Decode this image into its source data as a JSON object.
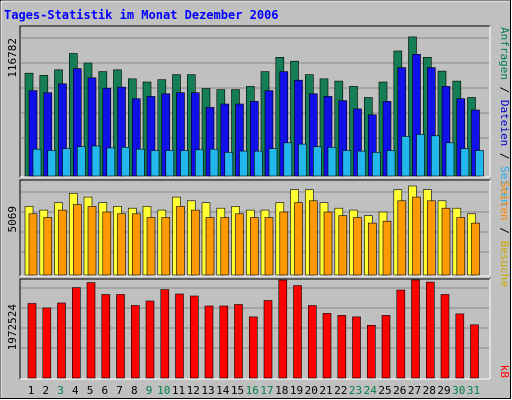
{
  "title": "Tages-Statistik im Monat Dezember 2006",
  "colors": {
    "title": "#0000ff",
    "frame_bg": "#c0c0c0",
    "anfragen": "#157e54",
    "dateien": "#1010e8",
    "seiten": "#22b8ee",
    "besuche": "#ffff33",
    "seiten2": "#ff9900",
    "kb": "#ff0000",
    "day_weekday": "#000000",
    "day_weekend": "#00804a",
    "label_green": "#00804a",
    "label_blue": "#0000cc",
    "label_cyan": "#22aaee",
    "label_orange": "#ff8800",
    "label_yellow": "#ccaa00",
    "label_red": "#ff0000"
  },
  "chart_data": [
    {
      "type": "bar",
      "panel": "top",
      "ymax_label": "116782",
      "ylim": [
        0,
        116782
      ],
      "legend": [
        {
          "text": "Anfragen",
          "color_key": "label_green"
        },
        {
          "text": "Dateien",
          "color_key": "label_blue"
        },
        {
          "text": "Seiten",
          "color_key": "label_cyan"
        }
      ],
      "series": [
        {
          "name": "Anfragen",
          "color_key": "anfragen",
          "values": [
            80600,
            78900,
            83200,
            96000,
            88600,
            81800,
            83200,
            76200,
            73700,
            75500,
            79500,
            79500,
            68500,
            67700,
            67700,
            70200,
            81800,
            93000,
            90000,
            79500,
            76200,
            74400,
            70200,
            61500,
            73700,
            98000,
            109000,
            93000,
            82200,
            74400,
            61500
          ]
        },
        {
          "name": "Dateien",
          "color_key": "dateien",
          "values": [
            66900,
            65300,
            72300,
            84200,
            77000,
            68800,
            69700,
            60600,
            62400,
            64400,
            65300,
            65300,
            53800,
            56400,
            56400,
            58500,
            66900,
            81800,
            75100,
            64400,
            62400,
            59100,
            52600,
            48000,
            58500,
            85000,
            95400,
            85000,
            70200,
            60600,
            51700
          ]
        },
        {
          "name": "Seiten",
          "color_key": "seiten",
          "values": [
            21000,
            20000,
            21500,
            23000,
            23500,
            22000,
            22500,
            21000,
            20000,
            20000,
            20000,
            20500,
            21000,
            18500,
            19500,
            19500,
            21500,
            26000,
            25000,
            23000,
            22500,
            20000,
            19500,
            18500,
            20000,
            31000,
            32500,
            31500,
            26000,
            21500,
            20000
          ]
        }
      ]
    },
    {
      "type": "bar",
      "panel": "middle",
      "ymax_label": "5069",
      "ylim": [
        0,
        5069
      ],
      "legend": [
        {
          "text": "Seiten",
          "color_key": "label_orange"
        },
        {
          "text": "Besuche",
          "color_key": "label_yellow"
        }
      ],
      "series": [
        {
          "name": "Besuche",
          "color_key": "besuche",
          "values": [
            3700,
            3500,
            3900,
            4400,
            4200,
            3900,
            3700,
            3600,
            3700,
            3500,
            4200,
            4000,
            3900,
            3600,
            3700,
            3500,
            3500,
            3900,
            4600,
            4600,
            3900,
            3600,
            3500,
            3200,
            3400,
            4600,
            4800,
            4600,
            4000,
            3600,
            3300
          ]
        },
        {
          "name": "Seiten",
          "color_key": "seiten2",
          "values": [
            3300,
            3100,
            3500,
            3800,
            3700,
            3400,
            3300,
            3300,
            3100,
            3100,
            3700,
            3500,
            3100,
            3100,
            3300,
            3100,
            3100,
            3400,
            3900,
            4000,
            3400,
            3200,
            3100,
            2800,
            2900,
            4000,
            4200,
            4000,
            3600,
            3100,
            2800
          ]
        }
      ]
    },
    {
      "type": "bar",
      "panel": "bottom",
      "ymax_label": "1972524",
      "ylim": [
        0,
        1972524
      ],
      "legend": [
        {
          "text": "kB",
          "color_key": "label_red"
        }
      ],
      "series": [
        {
          "name": "kB",
          "color_key": "kb",
          "values": [
            1500000,
            1410000,
            1510000,
            1820000,
            1920000,
            1680000,
            1680000,
            1460000,
            1550000,
            1780000,
            1690000,
            1650000,
            1450000,
            1450000,
            1480000,
            1230000,
            1560000,
            1970000,
            1860000,
            1460000,
            1300000,
            1260000,
            1230000,
            1060000,
            1260000,
            1770000,
            2000000,
            1930000,
            1680000,
            1290000,
            1070000
          ]
        }
      ]
    }
  ],
  "days": [
    {
      "label": "1",
      "weekend": false
    },
    {
      "label": "2",
      "weekend": false
    },
    {
      "label": "3",
      "weekend": true
    },
    {
      "label": "4",
      "weekend": false
    },
    {
      "label": "5",
      "weekend": false
    },
    {
      "label": "6",
      "weekend": false
    },
    {
      "label": "7",
      "weekend": false
    },
    {
      "label": "8",
      "weekend": false
    },
    {
      "label": "9",
      "weekend": true
    },
    {
      "label": "10",
      "weekend": true
    },
    {
      "label": "11",
      "weekend": false
    },
    {
      "label": "12",
      "weekend": false
    },
    {
      "label": "13",
      "weekend": false
    },
    {
      "label": "14",
      "weekend": false
    },
    {
      "label": "15",
      "weekend": false
    },
    {
      "label": "16",
      "weekend": true
    },
    {
      "label": "17",
      "weekend": true
    },
    {
      "label": "18",
      "weekend": false
    },
    {
      "label": "19",
      "weekend": false
    },
    {
      "label": "20",
      "weekend": false
    },
    {
      "label": "21",
      "weekend": false
    },
    {
      "label": "22",
      "weekend": false
    },
    {
      "label": "23",
      "weekend": true
    },
    {
      "label": "24",
      "weekend": true
    },
    {
      "label": "25",
      "weekend": false
    },
    {
      "label": "26",
      "weekend": false
    },
    {
      "label": "27",
      "weekend": false
    },
    {
      "label": "28",
      "weekend": false
    },
    {
      "label": "29",
      "weekend": false
    },
    {
      "label": "30",
      "weekend": true
    },
    {
      "label": "31",
      "weekend": true
    }
  ]
}
